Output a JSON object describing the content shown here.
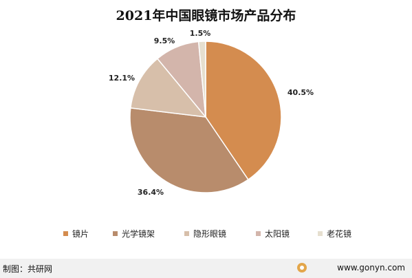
{
  "chart_data": {
    "type": "pie",
    "title": "2021年中国眼镜市场产品分布",
    "categories": [
      "镜片",
      "光学镜架",
      "隐形眼镜",
      "太阳镜",
      "老花镜"
    ],
    "values": [
      40.5,
      36.4,
      12.1,
      9.5,
      1.5
    ],
    "value_labels": [
      "40.5%",
      "36.4%",
      "12.1%",
      "9.5%",
      "1.5%"
    ],
    "colors": [
      "#d48c4f",
      "#b88c6c",
      "#d7bfaa",
      "#d3b5ab",
      "#e6dfcf"
    ],
    "legend_position": "bottom",
    "start_angle": "12 o'clock",
    "direction": "clockwise"
  },
  "footer": {
    "source": "制图：共研网",
    "url": "www.gonyn.com"
  }
}
